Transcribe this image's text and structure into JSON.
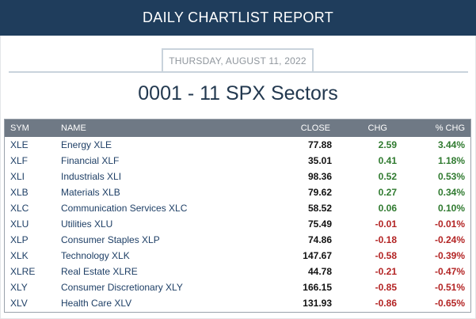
{
  "header": {
    "title": "DAILY CHARTLIST REPORT"
  },
  "report": {
    "date": "THURSDAY, AUGUST 11, 2022",
    "title": "0001 - 11 SPX Sectors"
  },
  "table": {
    "columns": {
      "sym": "SYM",
      "name": "NAME",
      "close": "CLOSE",
      "chg": "CHG",
      "pct": "% CHG"
    },
    "rows": [
      {
        "sym": "XLE",
        "name": "Energy XLE",
        "close": "77.88",
        "chg": "2.59",
        "pct": "3.44%",
        "dir": "pos"
      },
      {
        "sym": "XLF",
        "name": "Financial XLF",
        "close": "35.01",
        "chg": "0.41",
        "pct": "1.18%",
        "dir": "pos"
      },
      {
        "sym": "XLI",
        "name": "Industrials XLI",
        "close": "98.36",
        "chg": "0.52",
        "pct": "0.53%",
        "dir": "pos"
      },
      {
        "sym": "XLB",
        "name": "Materials XLB",
        "close": "79.62",
        "chg": "0.27",
        "pct": "0.34%",
        "dir": "pos"
      },
      {
        "sym": "XLC",
        "name": "Communication Services XLC",
        "close": "58.52",
        "chg": "0.06",
        "pct": "0.10%",
        "dir": "pos"
      },
      {
        "sym": "XLU",
        "name": "Utilities XLU",
        "close": "75.49",
        "chg": "-0.01",
        "pct": "-0.01%",
        "dir": "neg"
      },
      {
        "sym": "XLP",
        "name": "Consumer Staples XLP",
        "close": "74.86",
        "chg": "-0.18",
        "pct": "-0.24%",
        "dir": "neg"
      },
      {
        "sym": "XLK",
        "name": "Technology XLK",
        "close": "147.67",
        "chg": "-0.58",
        "pct": "-0.39%",
        "dir": "neg"
      },
      {
        "sym": "XLRE",
        "name": "Real Estate XLRE",
        "close": "44.78",
        "chg": "-0.21",
        "pct": "-0.47%",
        "dir": "neg"
      },
      {
        "sym": "XLY",
        "name": "Consumer Discretionary XLY",
        "close": "166.15",
        "chg": "-0.85",
        "pct": "-0.51%",
        "dir": "neg"
      },
      {
        "sym": "XLV",
        "name": "Health Care XLV",
        "close": "131.93",
        "chg": "-0.86",
        "pct": "-0.65%",
        "dir": "neg"
      }
    ]
  },
  "colors": {
    "header_bg": "#1f3d5c",
    "positive": "#2f7a2f",
    "negative": "#b32424",
    "table_header_bg": "#6f7985"
  }
}
